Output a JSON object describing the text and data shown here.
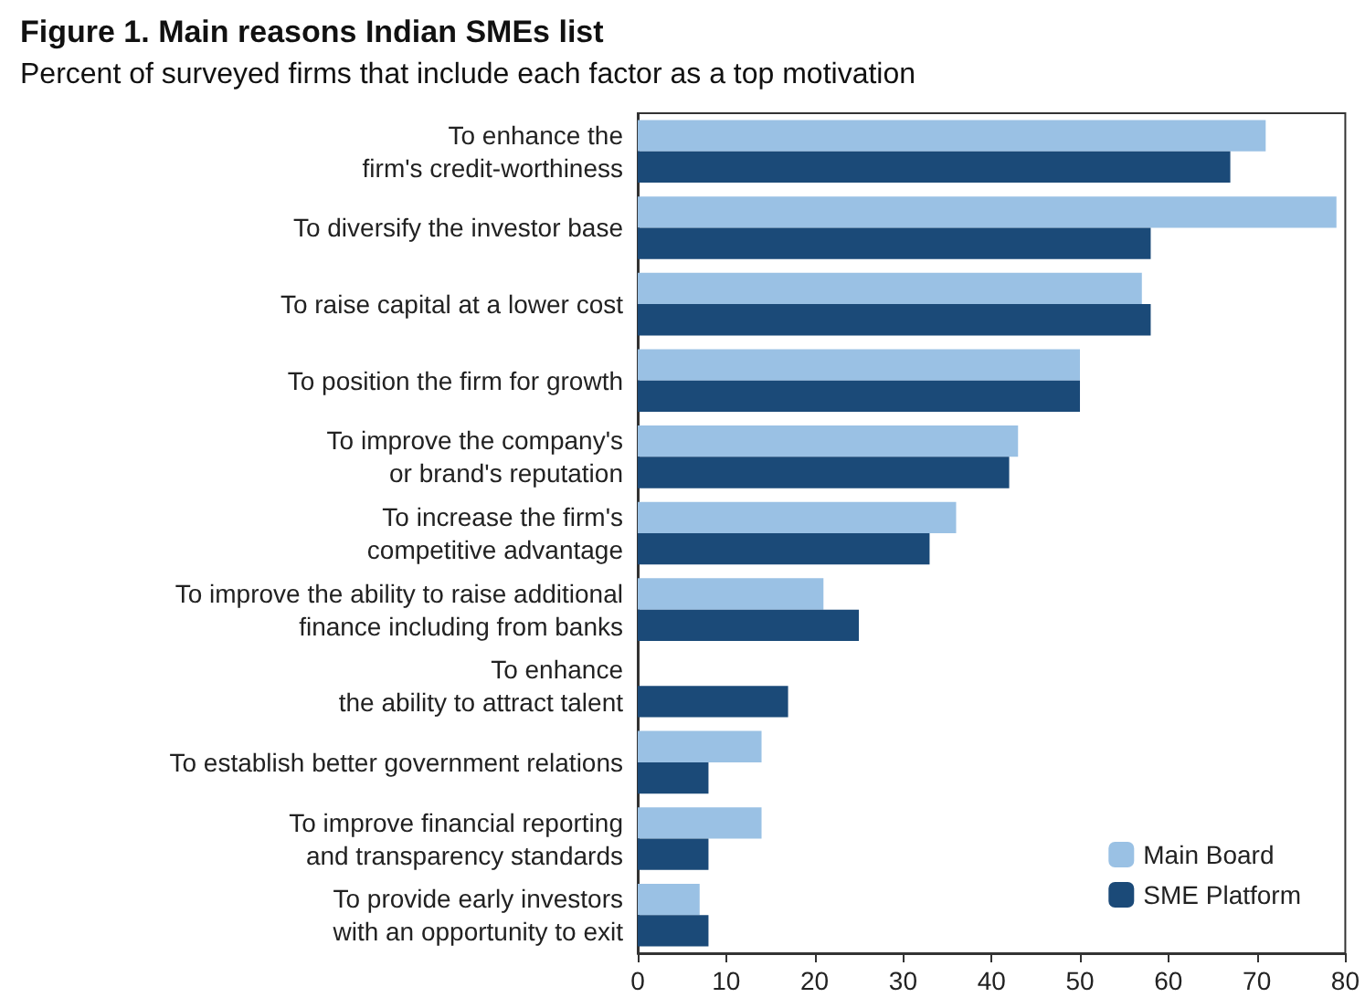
{
  "chart_data": {
    "type": "bar",
    "orientation": "horizontal",
    "title": "Figure 1. Main reasons Indian SMEs list",
    "subtitle": "Percent of surveyed firms that include each factor as a top motivation",
    "categories": [
      "To enhance the\nfirm's credit-worthiness",
      "To diversify the investor base",
      "To raise capital at a lower cost",
      "To position the firm for growth",
      "To improve the company's\nor brand's reputation",
      "To increase the firm's\ncompetitive advantage",
      "To improve the ability to raise additional\nfinance including from banks",
      "To enhance\nthe ability to attract talent",
      "To establish better government relations",
      "To improve financial reporting\nand transparency standards",
      "To provide early investors\nwith an opportunity to exit"
    ],
    "series": [
      {
        "name": "Main Board",
        "color": "#9ac1e4",
        "values": [
          71,
          79,
          57,
          50,
          43,
          36,
          21,
          0,
          14,
          14,
          7
        ]
      },
      {
        "name": "SME Platform",
        "color": "#1b4a78",
        "values": [
          67,
          58,
          58,
          50,
          42,
          33,
          25,
          17,
          8,
          8,
          8
        ]
      }
    ],
    "xlim": [
      0,
      80
    ],
    "xticks": [
      0,
      10,
      20,
      30,
      40,
      50,
      60,
      70,
      80
    ],
    "grid": false,
    "legend": "bottom right"
  }
}
